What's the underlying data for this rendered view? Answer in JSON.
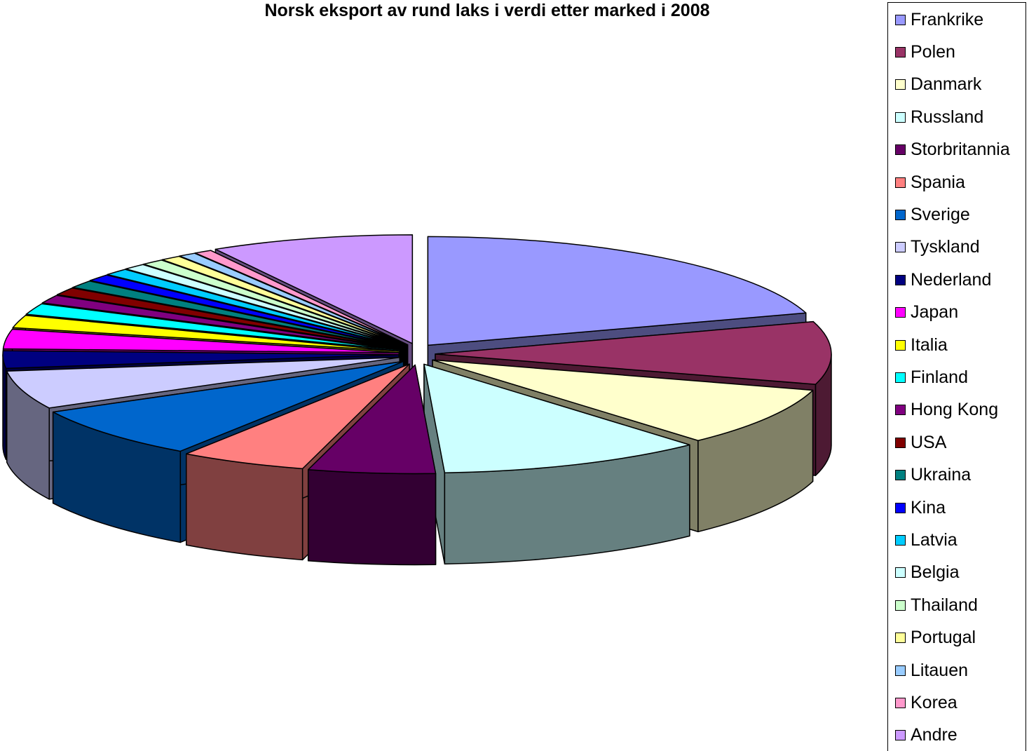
{
  "chart_data": {
    "type": "pie",
    "title": "Norsk eksport av rund laks i verdi etter marked i 2008",
    "legend_position": "right",
    "exploded": true,
    "three_d": true,
    "categories": [
      "Frankrike",
      "Polen",
      "Danmark",
      "Russland",
      "Storbritannia",
      "Spania",
      "Sverige",
      "Tyskland",
      "Nederland",
      "Japan",
      "Italia",
      "Finland",
      "Hong Kong",
      "USA",
      "Ukraina",
      "Kina",
      "Latvia",
      "Belgia",
      "Thailand",
      "Portugal",
      "Litauen",
      "Korea",
      "Andre"
    ],
    "values": [
      19.5,
      9.0,
      8.5,
      10.5,
      5.0,
      5.0,
      7.5,
      5.5,
      2.5,
      2.8,
      1.8,
      1.6,
      1.2,
      1.1,
      1.1,
      1.0,
      1.0,
      0.9,
      0.9,
      0.8,
      0.7,
      0.7,
      8.0
    ],
    "colors": [
      "#9999ff",
      "#993366",
      "#ffffcc",
      "#ccffff",
      "#660066",
      "#ff8080",
      "#0066cc",
      "#ccccff",
      "#000080",
      "#ff00ff",
      "#ffff00",
      "#00ffff",
      "#800080",
      "#800000",
      "#008080",
      "#0000ff",
      "#00ccff",
      "#ccffff",
      "#ccffcc",
      "#ffff99",
      "#99ccff",
      "#ff99cc",
      "#cc99ff"
    ]
  }
}
